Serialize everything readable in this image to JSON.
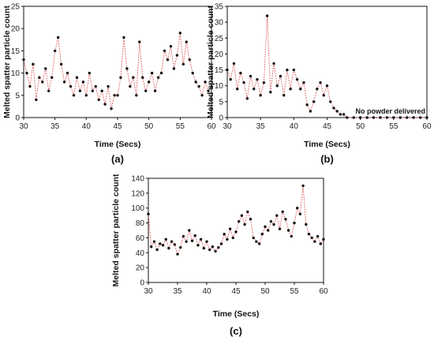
{
  "figure": {
    "colors": {
      "series_line": "#e06666",
      "series_marker": "#111111",
      "axis": "#111111"
    }
  },
  "chart_data": [
    {
      "id": "a",
      "type": "line",
      "panel_label": "(a)",
      "xlabel": "Time (Secs)",
      "ylabel": "Melted spatter particle count",
      "xlim": [
        30,
        60
      ],
      "ylim": [
        0,
        25
      ],
      "xticks": [
        "30",
        "35",
        "40",
        "45",
        "50",
        "55",
        "60"
      ],
      "yticks": [
        "0",
        "5",
        "10",
        "15",
        "20",
        "25"
      ],
      "grid": false,
      "series": [
        {
          "x": [
            30,
            30.5,
            31,
            31.5,
            32,
            32.5,
            33,
            33.5,
            34,
            34.5,
            35,
            35.5,
            36,
            36.5,
            37,
            37.5,
            38,
            38.5,
            39,
            39.5,
            40,
            40.5,
            41,
            41.5,
            42,
            42.5,
            43,
            43.5,
            44,
            44.5,
            45,
            45.5,
            46,
            46.5,
            47,
            47.5,
            48,
            48.5,
            49,
            49.5,
            50,
            50.5,
            51,
            51.5,
            52,
            52.5,
            53,
            53.5,
            54,
            54.5,
            55,
            55.5,
            56,
            56.5,
            57,
            57.5,
            58,
            58.5,
            59,
            59.5,
            60
          ],
          "y": [
            13,
            10,
            7,
            12,
            4,
            9,
            8,
            11,
            6,
            9,
            15,
            18,
            12,
            8,
            10,
            7,
            5,
            9,
            6,
            8,
            5,
            10,
            6,
            7,
            4,
            6,
            3,
            7,
            2,
            5,
            5,
            9,
            18,
            11,
            7,
            9,
            5,
            17,
            9,
            6,
            8,
            10,
            6,
            9,
            10,
            15,
            13,
            16,
            11,
            14,
            19,
            12,
            17,
            13,
            10,
            8,
            7,
            5,
            8,
            6,
            7
          ]
        }
      ]
    },
    {
      "id": "b",
      "type": "line",
      "panel_label": "(b)",
      "xlabel": "Time  (Secs)",
      "ylabel": "Melted spatter particle count",
      "xlim": [
        30,
        60
      ],
      "ylim": [
        0,
        35
      ],
      "xticks": [
        "30",
        "35",
        "40",
        "45",
        "50",
        "55",
        "60"
      ],
      "yticks": [
        "0",
        "5",
        "10",
        "15",
        "20",
        "25",
        "30",
        "35"
      ],
      "grid": false,
      "annotation": "No powder delivered",
      "series": [
        {
          "x": [
            30,
            30.5,
            31,
            31.5,
            32,
            32.5,
            33,
            33.5,
            34,
            34.5,
            35,
            35.5,
            36,
            36.5,
            37,
            37.5,
            38,
            38.5,
            39,
            39.5,
            40,
            40.5,
            41,
            41.5,
            42,
            42.5,
            43,
            43.5,
            44,
            44.5,
            45,
            45.5,
            46,
            46.5,
            47,
            47.5,
            48,
            49,
            50,
            51,
            52,
            53,
            54,
            55,
            56,
            57,
            58,
            59,
            60
          ],
          "y": [
            15,
            12,
            17,
            9,
            14,
            11,
            6,
            13,
            9,
            12,
            7,
            11,
            32,
            8,
            17,
            10,
            13,
            7,
            15,
            9,
            15,
            12,
            9,
            11,
            4,
            2,
            5,
            9,
            11,
            7,
            10,
            5,
            3,
            2,
            1,
            1,
            0,
            0,
            0,
            0,
            0,
            0,
            0,
            0,
            0,
            0,
            0,
            0,
            0
          ]
        }
      ]
    },
    {
      "id": "c",
      "type": "line",
      "panel_label": "(c)",
      "xlabel": "Time (Secs)",
      "ylabel": "Melted spatter particle count",
      "xlim": [
        30,
        60
      ],
      "ylim": [
        0,
        140
      ],
      "xticks": [
        "30",
        "35",
        "40",
        "45",
        "50",
        "55",
        "60"
      ],
      "yticks": [
        "0",
        "20",
        "40",
        "60",
        "80",
        "100",
        "120",
        "140"
      ],
      "grid": false,
      "series": [
        {
          "x": [
            30,
            30.5,
            31,
            31.5,
            32,
            32.5,
            33,
            33.5,
            34,
            34.5,
            35,
            35.5,
            36,
            36.5,
            37,
            37.5,
            38,
            38.5,
            39,
            39.5,
            40,
            40.5,
            41,
            41.5,
            42,
            42.5,
            43,
            43.5,
            44,
            44.5,
            45,
            45.5,
            46,
            46.5,
            47,
            47.5,
            48,
            48.5,
            49,
            49.5,
            50,
            50.5,
            51,
            51.5,
            52,
            52.5,
            53,
            53.5,
            54,
            54.5,
            55,
            55.5,
            56,
            56.5,
            57,
            57.5,
            58,
            58.5,
            59,
            59.5,
            60
          ],
          "y": [
            92,
            48,
            55,
            44,
            52,
            50,
            58,
            46,
            55,
            51,
            38,
            47,
            62,
            55,
            70,
            56,
            63,
            50,
            58,
            46,
            55,
            44,
            48,
            42,
            47,
            52,
            65,
            58,
            72,
            60,
            68,
            82,
            90,
            78,
            95,
            85,
            60,
            55,
            52,
            65,
            75,
            70,
            82,
            78,
            90,
            72,
            95,
            85,
            70,
            62,
            80,
            100,
            92,
            130,
            78,
            65,
            60,
            55,
            62,
            52,
            58
          ]
        }
      ]
    }
  ]
}
